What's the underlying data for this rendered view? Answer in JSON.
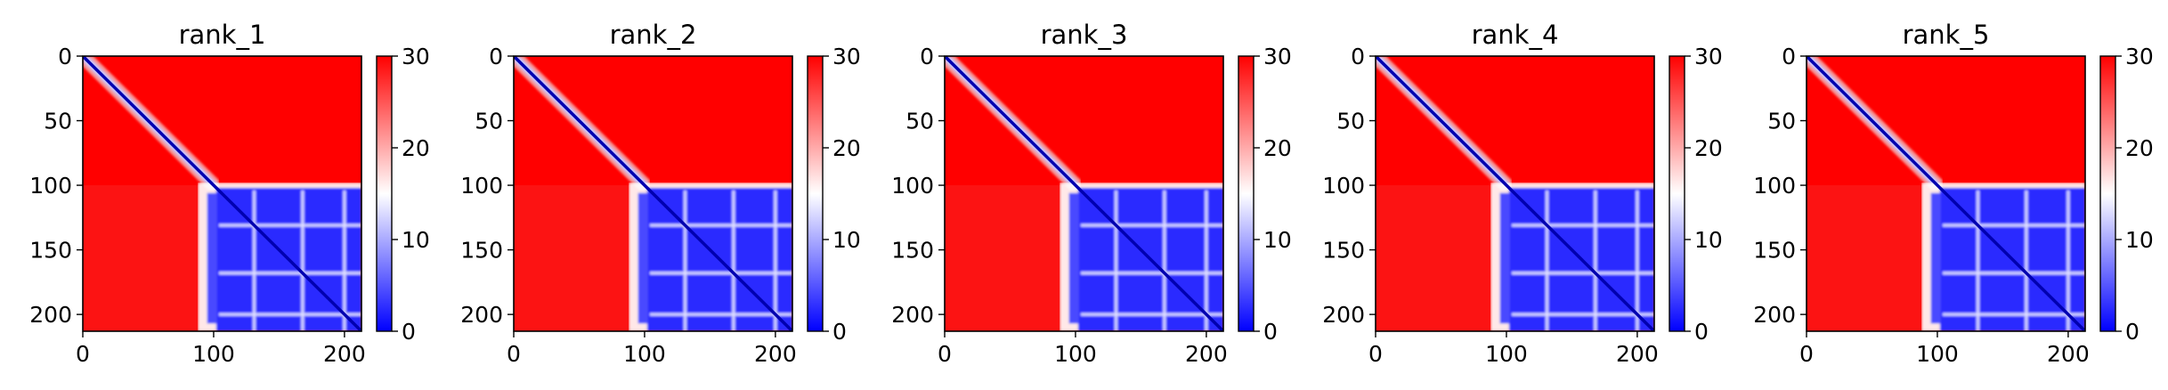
{
  "chart_data": [
    {
      "type": "heatmap",
      "title": "rank_1",
      "xticks": [
        "0",
        "100",
        "200"
      ],
      "yticks": [
        "0",
        "50",
        "100",
        "150",
        "200"
      ],
      "xlim": [
        0,
        213
      ],
      "ylim": [
        213,
        0
      ],
      "n": 213,
      "domain_break": 100,
      "colorbar": {
        "ticks": [
          "0",
          "10",
          "20",
          "30"
        ],
        "range": [
          0,
          30
        ],
        "colors": [
          "#0000ff",
          "#ffffff",
          "#ff0000"
        ]
      }
    },
    {
      "type": "heatmap",
      "title": "rank_2",
      "xticks": [
        "0",
        "100",
        "200"
      ],
      "yticks": [
        "0",
        "50",
        "100",
        "150",
        "200"
      ],
      "xlim": [
        0,
        213
      ],
      "ylim": [
        213,
        0
      ],
      "n": 213,
      "domain_break": 100,
      "colorbar": {
        "ticks": [
          "0",
          "10",
          "20",
          "30"
        ],
        "range": [
          0,
          30
        ],
        "colors": [
          "#0000ff",
          "#ffffff",
          "#ff0000"
        ]
      }
    },
    {
      "type": "heatmap",
      "title": "rank_3",
      "xticks": [
        "0",
        "100",
        "200"
      ],
      "yticks": [
        "0",
        "50",
        "100",
        "150",
        "200"
      ],
      "xlim": [
        0,
        213
      ],
      "ylim": [
        213,
        0
      ],
      "n": 213,
      "domain_break": 100,
      "colorbar": {
        "ticks": [
          "0",
          "10",
          "20",
          "30"
        ],
        "range": [
          0,
          30
        ],
        "colors": [
          "#0000ff",
          "#ffffff",
          "#ff0000"
        ]
      }
    },
    {
      "type": "heatmap",
      "title": "rank_4",
      "xticks": [
        "0",
        "100",
        "200"
      ],
      "yticks": [
        "0",
        "50",
        "100",
        "150",
        "200"
      ],
      "xlim": [
        0,
        213
      ],
      "ylim": [
        213,
        0
      ],
      "n": 213,
      "domain_break": 100,
      "colorbar": {
        "ticks": [
          "0",
          "10",
          "20",
          "30"
        ],
        "range": [
          0,
          30
        ],
        "colors": [
          "#0000ff",
          "#ffffff",
          "#ff0000"
        ]
      }
    },
    {
      "type": "heatmap",
      "title": "rank_5",
      "xticks": [
        "0",
        "100",
        "200"
      ],
      "yticks": [
        "0",
        "50",
        "100",
        "150",
        "200"
      ],
      "xlim": [
        0,
        213
      ],
      "ylim": [
        213,
        0
      ],
      "n": 213,
      "domain_break": 100,
      "colorbar": {
        "ticks": [
          "0",
          "10",
          "20",
          "30"
        ],
        "range": [
          0,
          30
        ],
        "colors": [
          "#0000ff",
          "#ffffff",
          "#ff0000"
        ]
      }
    }
  ]
}
